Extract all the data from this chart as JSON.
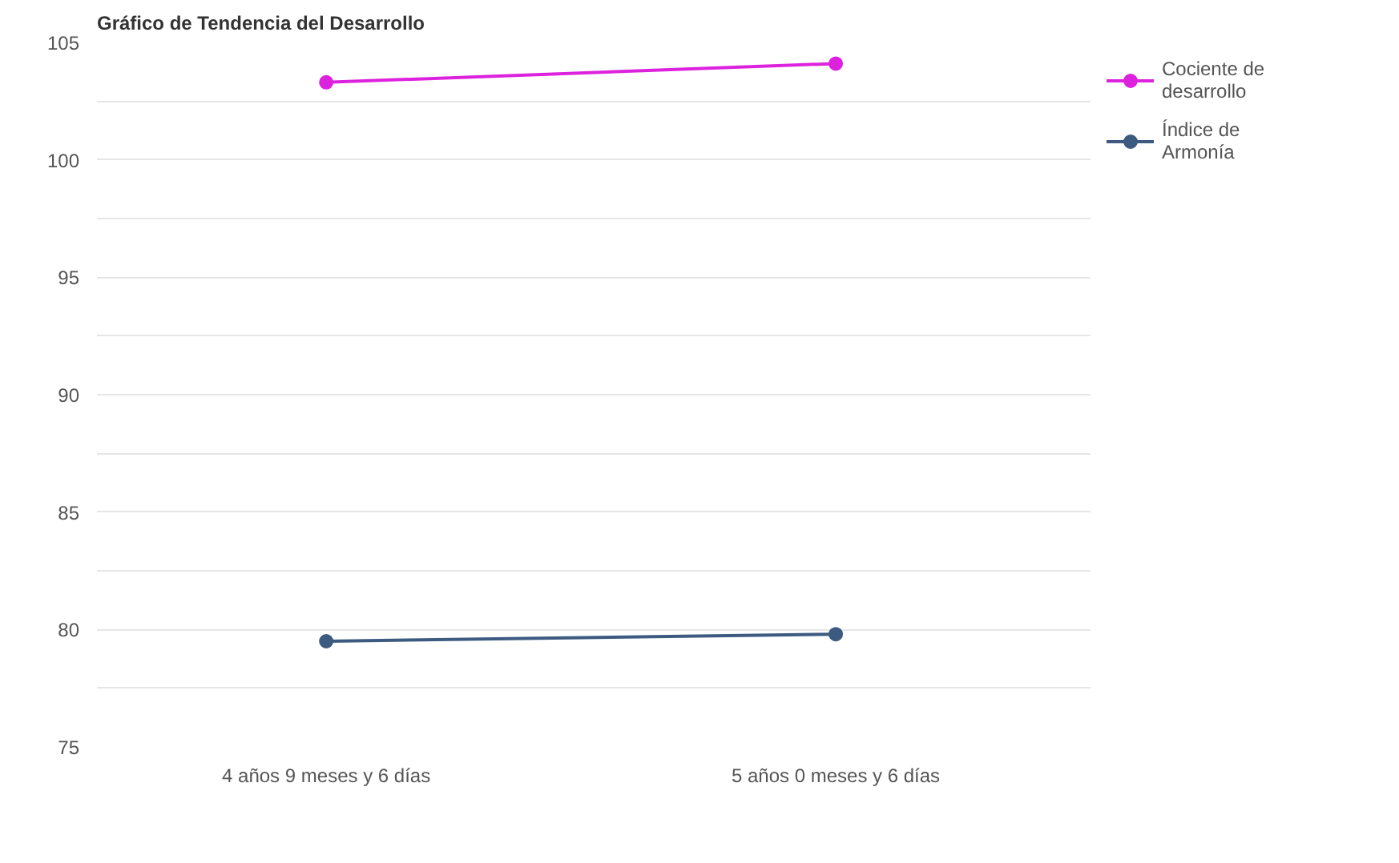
{
  "chart_data": {
    "type": "line",
    "title": "Gráfico de Tendencia del Desarrollo",
    "categories": [
      "4 años 9 meses y 6 días",
      "5 años 0 meses y 6 días"
    ],
    "series": [
      {
        "name": "Cociente de desarrollo",
        "color": "#dd22dd",
        "values": [
          103.3,
          104.1
        ]
      },
      {
        "name": "Índice de Armonía",
        "color": "#3d5a80",
        "values": [
          79.5,
          79.8
        ]
      }
    ],
    "ylim": [
      75,
      105
    ],
    "yticks": [
      75,
      {
        "value": 77.5,
        "label": null
      },
      80,
      {
        "value": 82.5,
        "label": null
      },
      85,
      {
        "value": 87.5,
        "label": null
      },
      90,
      {
        "value": 92.5,
        "label": null
      },
      95,
      {
        "value": 97.5,
        "label": null
      },
      100,
      {
        "value": 102.5,
        "label": null
      },
      105
    ],
    "grid": "y",
    "legend": "top right",
    "marker": "circle",
    "line_style": "solid"
  }
}
